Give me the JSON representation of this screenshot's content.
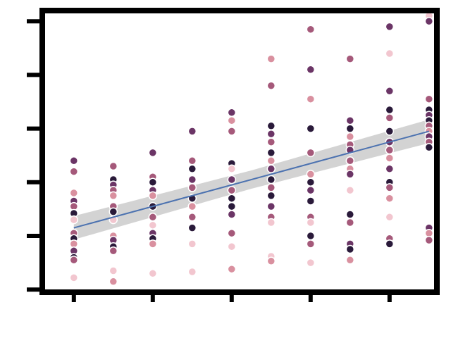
{
  "chart_data": {
    "type": "scatter",
    "title": "",
    "xlabel": "",
    "ylabel": "",
    "x_ticks": [
      1,
      2,
      3,
      4,
      5
    ],
    "y_ticks": [
      0,
      1,
      2,
      3,
      4,
      5
    ],
    "x_tick_labels": [
      "",
      "",
      "",
      "",
      ""
    ],
    "y_tick_labels": [
      "",
      "",
      "",
      "",
      "",
      ""
    ],
    "xlim": [
      0.6,
      5.6
    ],
    "ylim": [
      -0.05,
      5.2
    ],
    "grid": false,
    "legend": "none",
    "hue_colors": [
      "#f2c6cf",
      "#d9909f",
      "#a5597a",
      "#6b3566",
      "#2a1a3a"
    ],
    "points": [
      [
        1.0,
        2.4,
        3
      ],
      [
        1.0,
        2.2,
        2
      ],
      [
        1.0,
        1.8,
        1
      ],
      [
        1.0,
        1.65,
        3
      ],
      [
        1.0,
        1.55,
        2
      ],
      [
        1.0,
        1.42,
        4
      ],
      [
        1.0,
        1.3,
        0
      ],
      [
        1.0,
        1.05,
        2
      ],
      [
        1.0,
        0.95,
        4
      ],
      [
        1.0,
        0.85,
        1
      ],
      [
        1.0,
        0.72,
        3
      ],
      [
        1.0,
        0.6,
        4
      ],
      [
        1.0,
        0.55,
        2
      ],
      [
        1.0,
        0.22,
        0
      ],
      [
        1.5,
        2.3,
        2
      ],
      [
        1.5,
        2.05,
        4
      ],
      [
        1.5,
        1.95,
        3
      ],
      [
        1.5,
        1.85,
        2
      ],
      [
        1.5,
        1.75,
        1
      ],
      [
        1.5,
        1.55,
        2
      ],
      [
        1.5,
        1.45,
        4
      ],
      [
        1.5,
        1.3,
        0
      ],
      [
        1.5,
        1.0,
        1
      ],
      [
        1.5,
        0.92,
        3
      ],
      [
        1.5,
        0.8,
        4
      ],
      [
        1.5,
        0.72,
        2
      ],
      [
        1.5,
        0.35,
        0
      ],
      [
        1.5,
        0.15,
        1
      ],
      [
        2.0,
        2.55,
        3
      ],
      [
        2.0,
        2.1,
        2
      ],
      [
        2.0,
        2.0,
        4
      ],
      [
        2.0,
        1.85,
        3
      ],
      [
        2.0,
        1.75,
        1
      ],
      [
        2.0,
        1.55,
        4
      ],
      [
        2.0,
        1.35,
        2
      ],
      [
        2.0,
        1.2,
        0
      ],
      [
        2.0,
        1.05,
        3
      ],
      [
        2.0,
        0.95,
        4
      ],
      [
        2.0,
        0.85,
        1
      ],
      [
        2.0,
        0.3,
        0
      ],
      [
        2.5,
        2.95,
        3
      ],
      [
        2.5,
        2.4,
        2
      ],
      [
        2.5,
        2.25,
        4
      ],
      [
        2.5,
        2.05,
        3
      ],
      [
        2.5,
        1.9,
        2
      ],
      [
        2.5,
        1.7,
        4
      ],
      [
        2.5,
        1.55,
        1
      ],
      [
        2.5,
        1.35,
        2
      ],
      [
        2.5,
        1.15,
        4
      ],
      [
        2.5,
        0.85,
        0
      ],
      [
        2.5,
        0.33,
        0
      ],
      [
        3.0,
        3.3,
        3
      ],
      [
        3.0,
        3.15,
        1
      ],
      [
        3.0,
        2.95,
        2
      ],
      [
        3.0,
        2.35,
        4
      ],
      [
        3.0,
        2.25,
        0
      ],
      [
        3.0,
        2.05,
        3
      ],
      [
        3.0,
        1.85,
        2
      ],
      [
        3.0,
        1.7,
        4
      ],
      [
        3.0,
        1.55,
        4
      ],
      [
        3.0,
        1.4,
        3
      ],
      [
        3.0,
        1.05,
        2
      ],
      [
        3.0,
        0.8,
        0
      ],
      [
        3.0,
        0.38,
        1
      ],
      [
        3.5,
        4.3,
        1
      ],
      [
        3.5,
        3.8,
        2
      ],
      [
        3.5,
        3.05,
        4
      ],
      [
        3.5,
        2.9,
        3
      ],
      [
        3.5,
        2.75,
        2
      ],
      [
        3.5,
        2.55,
        4
      ],
      [
        3.5,
        2.4,
        1
      ],
      [
        3.5,
        2.25,
        3
      ],
      [
        3.5,
        2.05,
        4
      ],
      [
        3.5,
        1.9,
        2
      ],
      [
        3.5,
        1.75,
        4
      ],
      [
        3.5,
        1.55,
        3
      ],
      [
        3.5,
        1.35,
        2
      ],
      [
        3.5,
        1.25,
        0
      ],
      [
        3.5,
        0.62,
        0
      ],
      [
        3.5,
        0.53,
        1
      ],
      [
        4.0,
        4.85,
        2
      ],
      [
        4.0,
        4.1,
        3
      ],
      [
        4.0,
        3.55,
        1
      ],
      [
        4.0,
        3.0,
        4
      ],
      [
        4.0,
        2.55,
        2
      ],
      [
        4.0,
        2.15,
        1
      ],
      [
        4.0,
        2.0,
        4
      ],
      [
        4.0,
        1.85,
        3
      ],
      [
        4.0,
        1.65,
        4
      ],
      [
        4.0,
        1.35,
        2
      ],
      [
        4.0,
        1.25,
        0
      ],
      [
        4.0,
        1.0,
        4
      ],
      [
        4.0,
        0.85,
        2
      ],
      [
        4.0,
        0.5,
        0
      ],
      [
        4.5,
        4.3,
        2
      ],
      [
        4.5,
        3.15,
        3
      ],
      [
        4.5,
        3.0,
        4
      ],
      [
        4.5,
        2.85,
        1
      ],
      [
        4.5,
        2.7,
        2
      ],
      [
        4.5,
        2.6,
        3
      ],
      [
        4.5,
        2.4,
        2
      ],
      [
        4.5,
        2.25,
        1
      ],
      [
        4.5,
        2.15,
        3
      ],
      [
        4.5,
        1.85,
        0
      ],
      [
        4.5,
        1.4,
        4
      ],
      [
        4.5,
        1.25,
        2
      ],
      [
        4.5,
        0.85,
        3
      ],
      [
        4.5,
        0.75,
        4
      ],
      [
        4.5,
        0.55,
        1
      ],
      [
        5.0,
        4.9,
        3
      ],
      [
        5.0,
        4.4,
        0
      ],
      [
        5.0,
        3.7,
        3
      ],
      [
        5.0,
        3.35,
        4
      ],
      [
        5.0,
        3.2,
        2
      ],
      [
        5.0,
        2.95,
        4
      ],
      [
        5.0,
        2.75,
        3
      ],
      [
        5.0,
        2.6,
        2
      ],
      [
        5.0,
        2.45,
        1
      ],
      [
        5.0,
        2.25,
        3
      ],
      [
        5.0,
        2.0,
        4
      ],
      [
        5.0,
        1.9,
        2
      ],
      [
        5.0,
        1.7,
        1
      ],
      [
        5.0,
        1.35,
        0
      ],
      [
        5.0,
        0.95,
        2
      ],
      [
        5.0,
        0.85,
        4
      ],
      [
        5.5,
        5.1,
        0
      ],
      [
        5.5,
        5.0,
        3
      ],
      [
        5.5,
        3.55,
        2
      ],
      [
        5.5,
        3.35,
        4
      ],
      [
        5.5,
        3.25,
        3
      ],
      [
        5.5,
        3.15,
        4
      ],
      [
        5.5,
        3.05,
        2
      ],
      [
        5.5,
        2.95,
        1
      ],
      [
        5.5,
        2.85,
        3
      ],
      [
        5.5,
        2.75,
        2
      ],
      [
        5.5,
        2.65,
        4
      ],
      [
        5.5,
        1.15,
        3
      ],
      [
        5.5,
        1.05,
        1
      ],
      [
        5.5,
        0.92,
        2
      ]
    ],
    "regression": {
      "x": [
        1.0,
        5.5
      ],
      "y": [
        1.15,
        2.95
      ],
      "line_color": "#4c72b0",
      "ci_color": "#c8c8c8",
      "ci_halfwidth_low": [
        0.22,
        0.12
      ],
      "ci_halfwidth_high": [
        0.12,
        0.22
      ]
    }
  }
}
